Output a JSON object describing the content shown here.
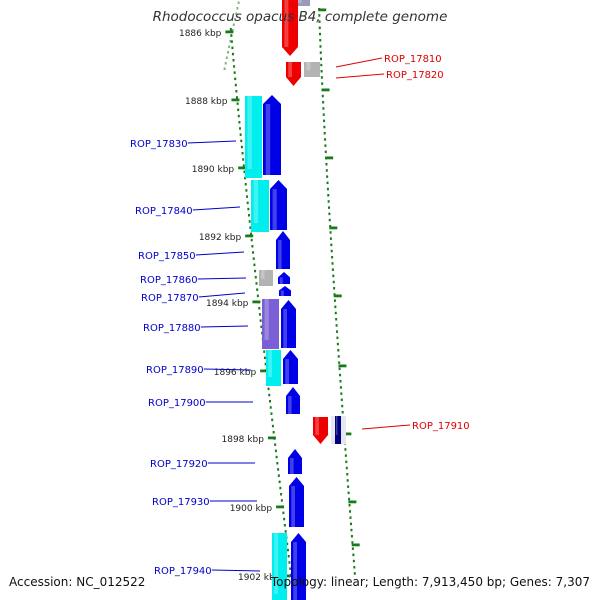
{
  "title": "Rhodococcus opacus B4, complete genome",
  "footer": {
    "accession": "Accession: NC_012522",
    "summary": "Topology: linear; Length: 7,913,450 bp; Genes: 7,307"
  },
  "colors": {
    "plus_strand": "#0000e6",
    "minus_strand": "#ee0000",
    "rna": "#00eeee",
    "pseudo": "#7b5fd6",
    "unknown": "#b3b3b3",
    "backbone": "#808080",
    "ticks": "#1a7a1a",
    "plus_label": "#0000cc",
    "minus_label": "#dd0000"
  },
  "scale_labels": [
    "1886 kbp",
    "1888 kbp",
    "1890 kbp",
    "1892 kbp",
    "1894 kbp",
    "1896 kbp",
    "1898 kbp",
    "1900 kbp",
    "1902 kbp"
  ],
  "gene_labels": {
    "plus": [
      "ROP_17830",
      "ROP_17840",
      "ROP_17850",
      "ROP_17860",
      "ROP_17870",
      "ROP_17880",
      "ROP_17890",
      "ROP_17900",
      "ROP_17920",
      "ROP_17930",
      "ROP_17940"
    ],
    "minus": [
      "ROP_17810",
      "ROP_17820",
      "ROP_17910"
    ]
  }
}
